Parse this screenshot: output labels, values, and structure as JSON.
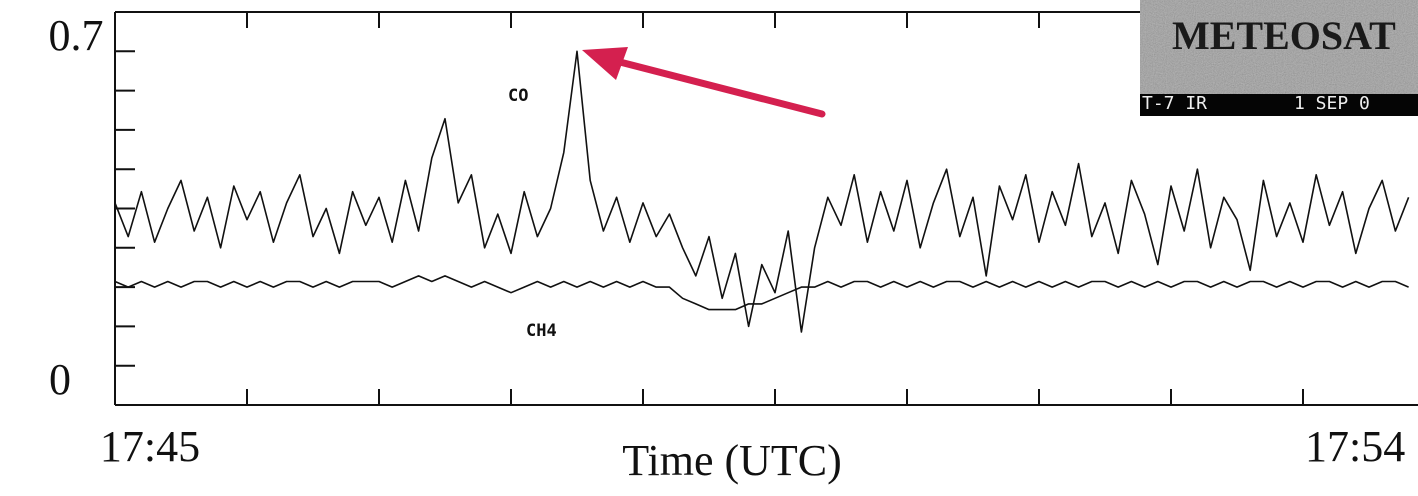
{
  "chart_data": {
    "type": "line",
    "x_label": "Time (UTC)",
    "xlim": [
      0,
      9.87
    ],
    "xticks": [
      {
        "value": 0,
        "label": "17:45"
      },
      {
        "value": 9,
        "label": "17:54"
      }
    ],
    "xminor_ticks": [
      1,
      2,
      3,
      4,
      5,
      6,
      7,
      8
    ],
    "ylim": [
      0,
      0.7
    ],
    "yticks": [
      0,
      0.7
    ],
    "yminor_ticks": [
      0.07,
      0.14,
      0.21,
      0.28,
      0.35,
      0.42,
      0.49,
      0.56,
      0.63
    ],
    "x": [
      0,
      0.1,
      0.2,
      0.3,
      0.4,
      0.5,
      0.6,
      0.7,
      0.8,
      0.9,
      1,
      1.1,
      1.2,
      1.3,
      1.4,
      1.5,
      1.6,
      1.7,
      1.8,
      1.9,
      2,
      2.1,
      2.2,
      2.3,
      2.4,
      2.5,
      2.6,
      2.7,
      2.8,
      2.9,
      3,
      3.1,
      3.2,
      3.3,
      3.4,
      3.5,
      3.6,
      3.7,
      3.8,
      3.9,
      4,
      4.1,
      4.2,
      4.3,
      4.4,
      4.5,
      4.6,
      4.7,
      4.8,
      4.9,
      5,
      5.1,
      5.2,
      5.3,
      5.4,
      5.5,
      5.6,
      5.7,
      5.8,
      5.9,
      6,
      6.1,
      6.2,
      6.3,
      6.4,
      6.5,
      6.6,
      6.7,
      6.8,
      6.9,
      7,
      7.1,
      7.2,
      7.3,
      7.4,
      7.5,
      7.6,
      7.7,
      7.8,
      7.9,
      8,
      8.1,
      8.2,
      8.3,
      8.4,
      8.5,
      8.6,
      8.7,
      8.8,
      8.9,
      9,
      9.1,
      9.2,
      9.3,
      9.4,
      9.5,
      9.6,
      9.7,
      9.8
    ],
    "series": [
      {
        "name": "CO",
        "color": "#111111",
        "values": [
          0.36,
          0.3,
          0.38,
          0.29,
          0.35,
          0.4,
          0.31,
          0.37,
          0.28,
          0.39,
          0.33,
          0.38,
          0.29,
          0.36,
          0.41,
          0.3,
          0.35,
          0.27,
          0.38,
          0.32,
          0.37,
          0.29,
          0.4,
          0.31,
          0.44,
          0.51,
          0.36,
          0.41,
          0.28,
          0.34,
          0.27,
          0.38,
          0.3,
          0.35,
          0.45,
          0.63,
          0.4,
          0.31,
          0.37,
          0.29,
          0.36,
          0.3,
          0.34,
          0.28,
          0.23,
          0.3,
          0.19,
          0.27,
          0.14,
          0.25,
          0.2,
          0.31,
          0.13,
          0.28,
          0.37,
          0.32,
          0.41,
          0.29,
          0.38,
          0.31,
          0.4,
          0.28,
          0.36,
          0.42,
          0.3,
          0.37,
          0.23,
          0.39,
          0.33,
          0.41,
          0.29,
          0.38,
          0.32,
          0.43,
          0.3,
          0.36,
          0.27,
          0.4,
          0.34,
          0.25,
          0.39,
          0.31,
          0.42,
          0.28,
          0.37,
          0.33,
          0.24,
          0.4,
          0.3,
          0.36,
          0.29,
          0.41,
          0.32,
          0.38,
          0.27,
          0.35,
          0.4,
          0.31,
          0.37
        ]
      },
      {
        "name": "CH4",
        "color": "#111111",
        "values": [
          0.22,
          0.21,
          0.22,
          0.21,
          0.22,
          0.21,
          0.22,
          0.22,
          0.21,
          0.22,
          0.21,
          0.22,
          0.21,
          0.22,
          0.22,
          0.21,
          0.22,
          0.21,
          0.22,
          0.22,
          0.22,
          0.21,
          0.22,
          0.23,
          0.22,
          0.23,
          0.22,
          0.21,
          0.22,
          0.21,
          0.2,
          0.21,
          0.22,
          0.21,
          0.22,
          0.21,
          0.22,
          0.21,
          0.22,
          0.21,
          0.22,
          0.21,
          0.21,
          0.19,
          0.18,
          0.17,
          0.17,
          0.17,
          0.18,
          0.18,
          0.19,
          0.2,
          0.21,
          0.21,
          0.22,
          0.21,
          0.22,
          0.22,
          0.21,
          0.22,
          0.21,
          0.22,
          0.21,
          0.22,
          0.22,
          0.21,
          0.22,
          0.21,
          0.22,
          0.21,
          0.22,
          0.21,
          0.22,
          0.21,
          0.22,
          0.22,
          0.21,
          0.22,
          0.21,
          0.22,
          0.21,
          0.22,
          0.22,
          0.21,
          0.22,
          0.21,
          0.22,
          0.22,
          0.21,
          0.22,
          0.21,
          0.22,
          0.22,
          0.21,
          0.22,
          0.21,
          0.22,
          0.22,
          0.21
        ]
      }
    ],
    "inset": {
      "title": "METEOSAT",
      "caption_left": "T-7 IR",
      "caption_right": "1 SEP 0"
    }
  }
}
